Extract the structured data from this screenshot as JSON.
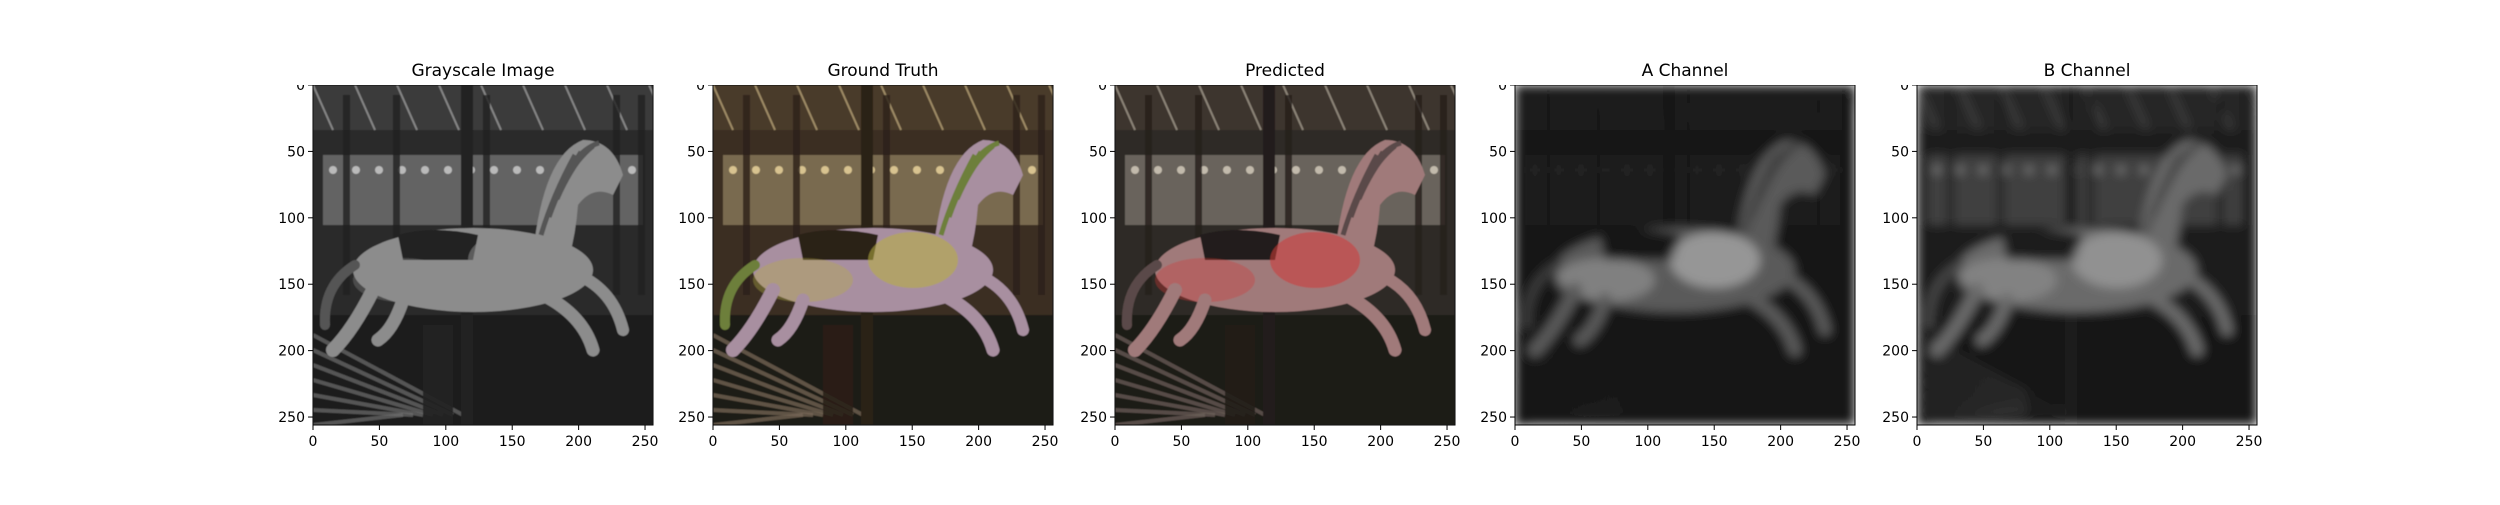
{
  "figure": {
    "panels": [
      {
        "title": "Grayscale Image",
        "variant": "grayscale"
      },
      {
        "title": "Ground Truth",
        "variant": "color"
      },
      {
        "title": "Predicted",
        "variant": "predicted"
      },
      {
        "title": "A Channel",
        "variant": "a_channel"
      },
      {
        "title": "B Channel",
        "variant": "b_channel"
      }
    ],
    "y_ticks": [
      "0",
      "50",
      "100",
      "150",
      "200",
      "250"
    ],
    "x_ticks": [
      "0",
      "50",
      "100",
      "150",
      "200",
      "250"
    ],
    "axis_range": [
      0,
      256
    ]
  }
}
